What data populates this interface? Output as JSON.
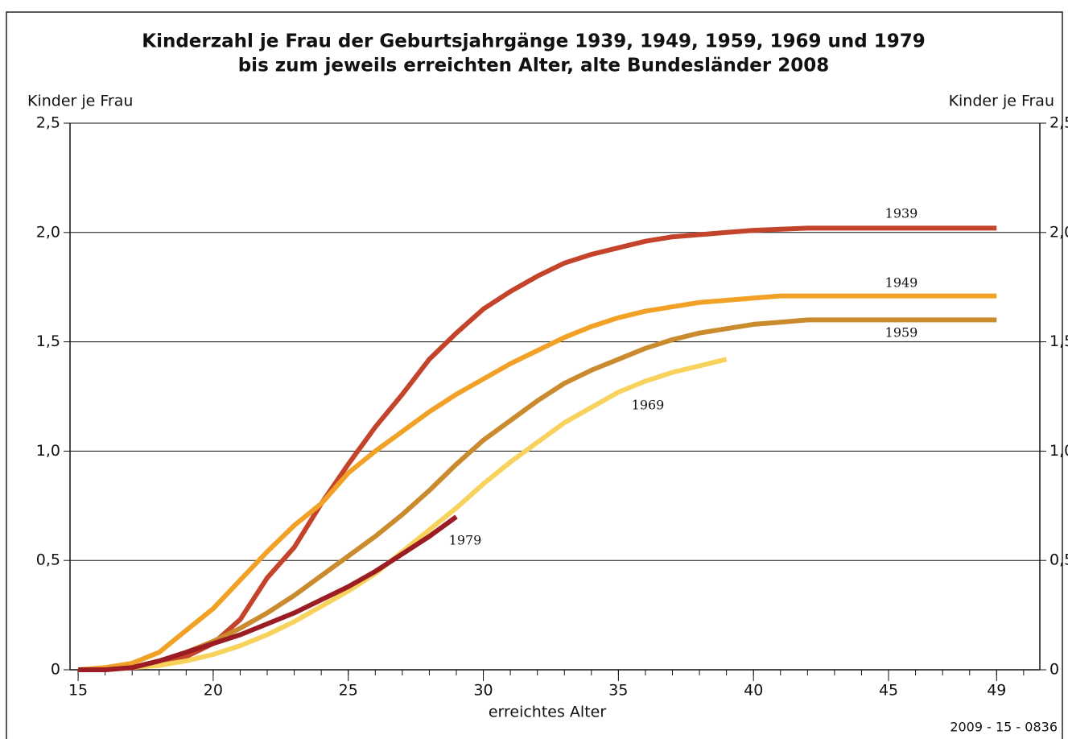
{
  "chart_data": {
    "type": "line",
    "title": [
      "Kinderzahl je Frau der Geburtsjahrgänge 1939, 1949, 1959, 1969 und 1979",
      "bis zum jeweils erreichten Alter, alte Bundesländer 2008"
    ],
    "ylabel": "Kinder je Frau",
    "xlabel": "erreichtes Alter",
    "source": "2009 - 15 - 0836",
    "x": [
      15,
      16,
      17,
      18,
      19,
      20,
      21,
      22,
      23,
      24,
      25,
      26,
      27,
      28,
      29,
      30,
      31,
      32,
      33,
      34,
      35,
      36,
      37,
      38,
      39,
      40,
      41,
      42,
      43,
      44,
      45,
      46,
      47,
      48,
      49
    ],
    "series": [
      {
        "name": "1939",
        "color": "#c4432b",
        "values": [
          0,
          0,
          0.01,
          0.03,
          0.06,
          0.12,
          0.23,
          0.42,
          0.56,
          0.76,
          0.94,
          1.11,
          1.26,
          1.42,
          1.54,
          1.65,
          1.73,
          1.8,
          1.86,
          1.9,
          1.93,
          1.96,
          1.98,
          1.99,
          2.0,
          2.01,
          2.015,
          2.02,
          2.02,
          2.02,
          2.02,
          2.02,
          2.02,
          2.02,
          2.02
        ]
      },
      {
        "name": "1949",
        "color": "#f0a126",
        "values": [
          0,
          0.01,
          0.03,
          0.08,
          0.18,
          0.28,
          0.41,
          0.54,
          0.66,
          0.76,
          0.9,
          1.0,
          1.09,
          1.18,
          1.26,
          1.33,
          1.4,
          1.46,
          1.52,
          1.57,
          1.61,
          1.64,
          1.66,
          1.68,
          1.69,
          1.7,
          1.71,
          1.71,
          1.71,
          1.71,
          1.71,
          1.71,
          1.71,
          1.71,
          1.71
        ]
      },
      {
        "name": "1959",
        "color": "#c98b2e",
        "values": [
          0,
          0,
          0.01,
          0.04,
          0.08,
          0.13,
          0.19,
          0.26,
          0.34,
          0.43,
          0.52,
          0.61,
          0.71,
          0.82,
          0.94,
          1.05,
          1.14,
          1.23,
          1.31,
          1.37,
          1.42,
          1.47,
          1.51,
          1.54,
          1.56,
          1.58,
          1.59,
          1.6,
          1.6,
          1.6,
          1.6,
          1.6,
          1.6,
          1.6,
          1.6
        ]
      },
      {
        "name": "1969",
        "color": "#f7d35e",
        "values": [
          0,
          0,
          0.01,
          0.02,
          0.04,
          0.07,
          0.11,
          0.16,
          0.22,
          0.29,
          0.36,
          0.44,
          0.54,
          0.64,
          0.74,
          0.85,
          0.95,
          1.04,
          1.13,
          1.2,
          1.27,
          1.32,
          1.36,
          1.39,
          1.42,
          null,
          null,
          null,
          null,
          null,
          null,
          null,
          null,
          null,
          null
        ]
      },
      {
        "name": "1979",
        "color": "#9b1c22",
        "values": [
          0,
          0,
          0.01,
          0.04,
          0.08,
          0.12,
          0.16,
          0.21,
          0.26,
          0.32,
          0.38,
          0.45,
          0.53,
          0.61,
          0.7,
          null,
          null,
          null,
          null,
          null,
          null,
          null,
          null,
          null,
          null,
          null,
          null,
          null,
          null,
          null,
          null,
          null,
          null,
          null,
          null
        ]
      }
    ],
    "xlim": [
      14.7,
      50.6
    ],
    "xticks": [
      15,
      20,
      25,
      30,
      35,
      40,
      45,
      49
    ],
    "ylim": [
      0,
      2.5
    ],
    "yticks": [
      0,
      {
        "value": 0.5,
        "label": "0,5"
      },
      {
        "value": 1,
        "label": "1,0"
      },
      {
        "value": 1.5,
        "label": "1,5"
      },
      {
        "value": 2,
        "label": "2,0"
      },
      {
        "value": 2.5,
        "label": "2,5"
      }
    ],
    "grid": true
  }
}
